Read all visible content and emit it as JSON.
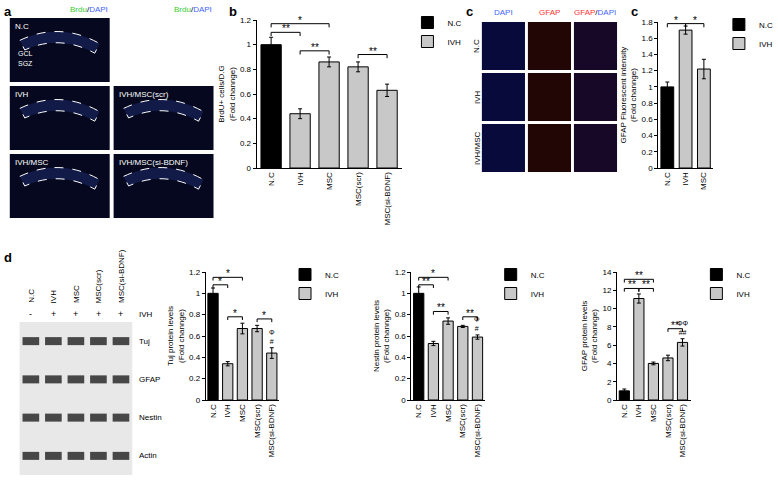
{
  "chart_data": [
    {
      "panel": "b",
      "type": "bar",
      "categories": [
        "N.C",
        "IVH",
        "MSC",
        "MSC(scr)",
        "MSC(si-BDNF)"
      ],
      "y_label": "BrdU+ cells/D.G\n(Fold channge)",
      "series": [
        {
          "name": "N.C",
          "color": "#000000",
          "values": [
            1.0,
            null,
            null,
            null,
            null
          ],
          "errors": [
            0.06,
            null,
            null,
            null,
            null
          ]
        },
        {
          "name": "IVH",
          "color": "#c8c8c8",
          "values": [
            null,
            0.44,
            0.86,
            0.82,
            0.63
          ],
          "errors": [
            null,
            0.04,
            0.04,
            0.04,
            0.05
          ]
        }
      ],
      "ylim": [
        0,
        1.2
      ],
      "yticks": [
        0,
        0.2,
        0.4,
        0.6,
        0.8,
        1,
        1.2
      ],
      "grid": false,
      "legend": "top right",
      "comparisons": [
        {
          "from": 0,
          "to": 1,
          "y": 1.1,
          "label": "**"
        },
        {
          "from": 0,
          "to": 2,
          "y": 1.17,
          "label": "*"
        },
        {
          "from": 1,
          "to": 2,
          "y": 0.95,
          "label": "**"
        },
        {
          "from": 3,
          "to": 4,
          "y": 0.92,
          "label": "**"
        }
      ]
    },
    {
      "panel": "c",
      "type": "bar",
      "categories": [
        "N.C",
        "IVH",
        "MSC"
      ],
      "y_label": "GFAP Fluorescent intensity\n(Fold channge)",
      "series": [
        {
          "name": "N.C",
          "color": "#000000",
          "values": [
            1.0,
            null,
            null
          ],
          "errors": [
            0.06,
            null,
            null
          ]
        },
        {
          "name": "IVH",
          "color": "#c8c8c8",
          "values": [
            null,
            1.7,
            1.22
          ],
          "errors": [
            null,
            0.05,
            0.12
          ]
        }
      ],
      "ylim": [
        0,
        1.8
      ],
      "yticks": [
        0,
        0.2,
        0.4,
        0.6,
        0.8,
        1,
        1.2,
        1.4,
        1.6,
        1.8
      ],
      "grid": false,
      "legend": "top right",
      "comparisons": [
        {
          "from": 0,
          "to": 1,
          "y": 1.78,
          "label": "*"
        },
        {
          "from": 1,
          "to": 2,
          "y": 1.78,
          "label": "*"
        }
      ]
    },
    {
      "type": "bar",
      "categories": [
        "N.C",
        "IVH",
        "MSC",
        "MSC(scr)",
        "MSC(si-BDNF)"
      ],
      "y_label": "Tuj protein levels\n(Fold channge)",
      "series": [
        {
          "name": "N.C",
          "color": "#000000",
          "values": [
            1.0,
            null,
            null,
            null,
            null
          ],
          "errors": [
            0.05,
            null,
            null,
            null,
            null
          ]
        },
        {
          "name": "IVH",
          "color": "#c8c8c8",
          "values": [
            null,
            0.34,
            0.67,
            0.67,
            0.44
          ],
          "errors": [
            null,
            0.02,
            0.05,
            0.03,
            0.05
          ]
        }
      ],
      "ylim": [
        0,
        1.2
      ],
      "yticks": [
        0,
        0.2,
        0.4,
        0.6,
        0.8,
        1,
        1.2
      ],
      "grid": false,
      "legend": "top right",
      "comparisons": [
        {
          "from": 0,
          "to": 1,
          "y": 1.08,
          "label": "*"
        },
        {
          "from": 0,
          "to": 2,
          "y": 1.15,
          "label": "*"
        },
        {
          "from": 1,
          "to": 2,
          "y": 0.78,
          "label": "*"
        },
        {
          "from": 3,
          "to": 4,
          "y": 0.76,
          "label": "*"
        }
      ],
      "marks": [
        {
          "at": 4,
          "y": 0.5,
          "text": "Φ\n#"
        }
      ]
    },
    {
      "type": "bar",
      "categories": [
        "N.C",
        "IVH",
        "MSC",
        "MSC(scr)",
        "MSC(si-BDNF)"
      ],
      "y_label": "Nestin protein levels\n(Fold channge)",
      "series": [
        {
          "name": "N.C",
          "color": "#000000",
          "values": [
            1.0,
            null,
            null,
            null,
            null
          ],
          "errors": [
            0.06,
            null,
            null,
            null,
            null
          ]
        },
        {
          "name": "IVH",
          "color": "#c8c8c8",
          "values": [
            null,
            0.53,
            0.74,
            0.69,
            0.59
          ],
          "errors": [
            null,
            0.02,
            0.03,
            0.01,
            0.02
          ]
        }
      ],
      "ylim": [
        0,
        1.2
      ],
      "yticks": [
        0,
        0.2,
        0.4,
        0.6,
        0.8,
        1,
        1.2
      ],
      "grid": false,
      "legend": "top right",
      "comparisons": [
        {
          "from": 0,
          "to": 1,
          "y": 1.08,
          "label": "**"
        },
        {
          "from": 0,
          "to": 2,
          "y": 1.15,
          "label": "*"
        },
        {
          "from": 1,
          "to": 2,
          "y": 0.83,
          "label": "**"
        },
        {
          "from": 3,
          "to": 4,
          "y": 0.78,
          "label": "**"
        }
      ],
      "marks": [
        {
          "at": 4,
          "y": 0.62,
          "text": "Φ\n#"
        }
      ]
    },
    {
      "type": "bar",
      "categories": [
        "N.C",
        "IVH",
        "MSC",
        "MSC(scr)",
        "MSC(si-BDNF)"
      ],
      "y_label": "GFAP protein levels\n(Fold channge)",
      "series": [
        {
          "name": "N.C",
          "color": "#000000",
          "values": [
            1.0,
            null,
            null,
            null,
            null
          ],
          "errors": [
            0.2,
            null,
            null,
            null,
            null
          ]
        },
        {
          "name": "IVH",
          "color": "#c8c8c8",
          "values": [
            null,
            11.1,
            4.0,
            4.6,
            6.3
          ],
          "errors": [
            null,
            0.5,
            0.15,
            0.3,
            0.4
          ]
        }
      ],
      "ylim": [
        0,
        14
      ],
      "yticks": [
        0,
        2,
        4,
        6,
        8,
        10,
        12,
        14
      ],
      "grid": false,
      "legend": "top right",
      "comparisons": [
        {
          "from": 0,
          "to": 2,
          "y": 13.2,
          "label": "**"
        },
        {
          "from": 0,
          "to": 1,
          "y": 12.2,
          "label": "**"
        },
        {
          "from": 1,
          "to": 2,
          "y": 12.2,
          "label": "**"
        },
        {
          "from": 3,
          "to": 4,
          "y": 7.8,
          "label": "**"
        }
      ],
      "marks": [
        {
          "at": 4,
          "y": 6.8,
          "text": "ΦΦ\n##"
        }
      ]
    }
  ],
  "image_panels": {
    "stain_colors": {
      "Brdu": "#33cc33",
      "DAPI": "#4466ff",
      "GFAP": "#ff3333"
    },
    "a": {
      "panel": "a",
      "header": "Brdu/DAPI",
      "regions": [
        "GCL",
        "SGZ"
      ],
      "left_column": [
        "N.C",
        "IVH",
        "IVH/MSC"
      ],
      "right_column": [
        "IVH/MSC(scr)",
        "IVH/MSC(si-BDNF)"
      ]
    },
    "c": {
      "panel": "c",
      "columns": [
        "DAPI",
        "GFAP",
        "GFAP/DAPI"
      ],
      "rows": [
        "N.C",
        "IVH",
        "IVH/MSC"
      ]
    },
    "d": {
      "panel": "d",
      "lanes": [
        "N.C",
        "IVH",
        "MSC",
        "MSC(scr)",
        "MSC(si-BDNF)"
      ],
      "treatment": {
        "name": "IVH",
        "marks": [
          "-",
          "+",
          "+",
          "+",
          "+"
        ]
      },
      "bands": [
        "Tuj",
        "GFAP",
        "Nestin",
        "Actin"
      ]
    }
  }
}
